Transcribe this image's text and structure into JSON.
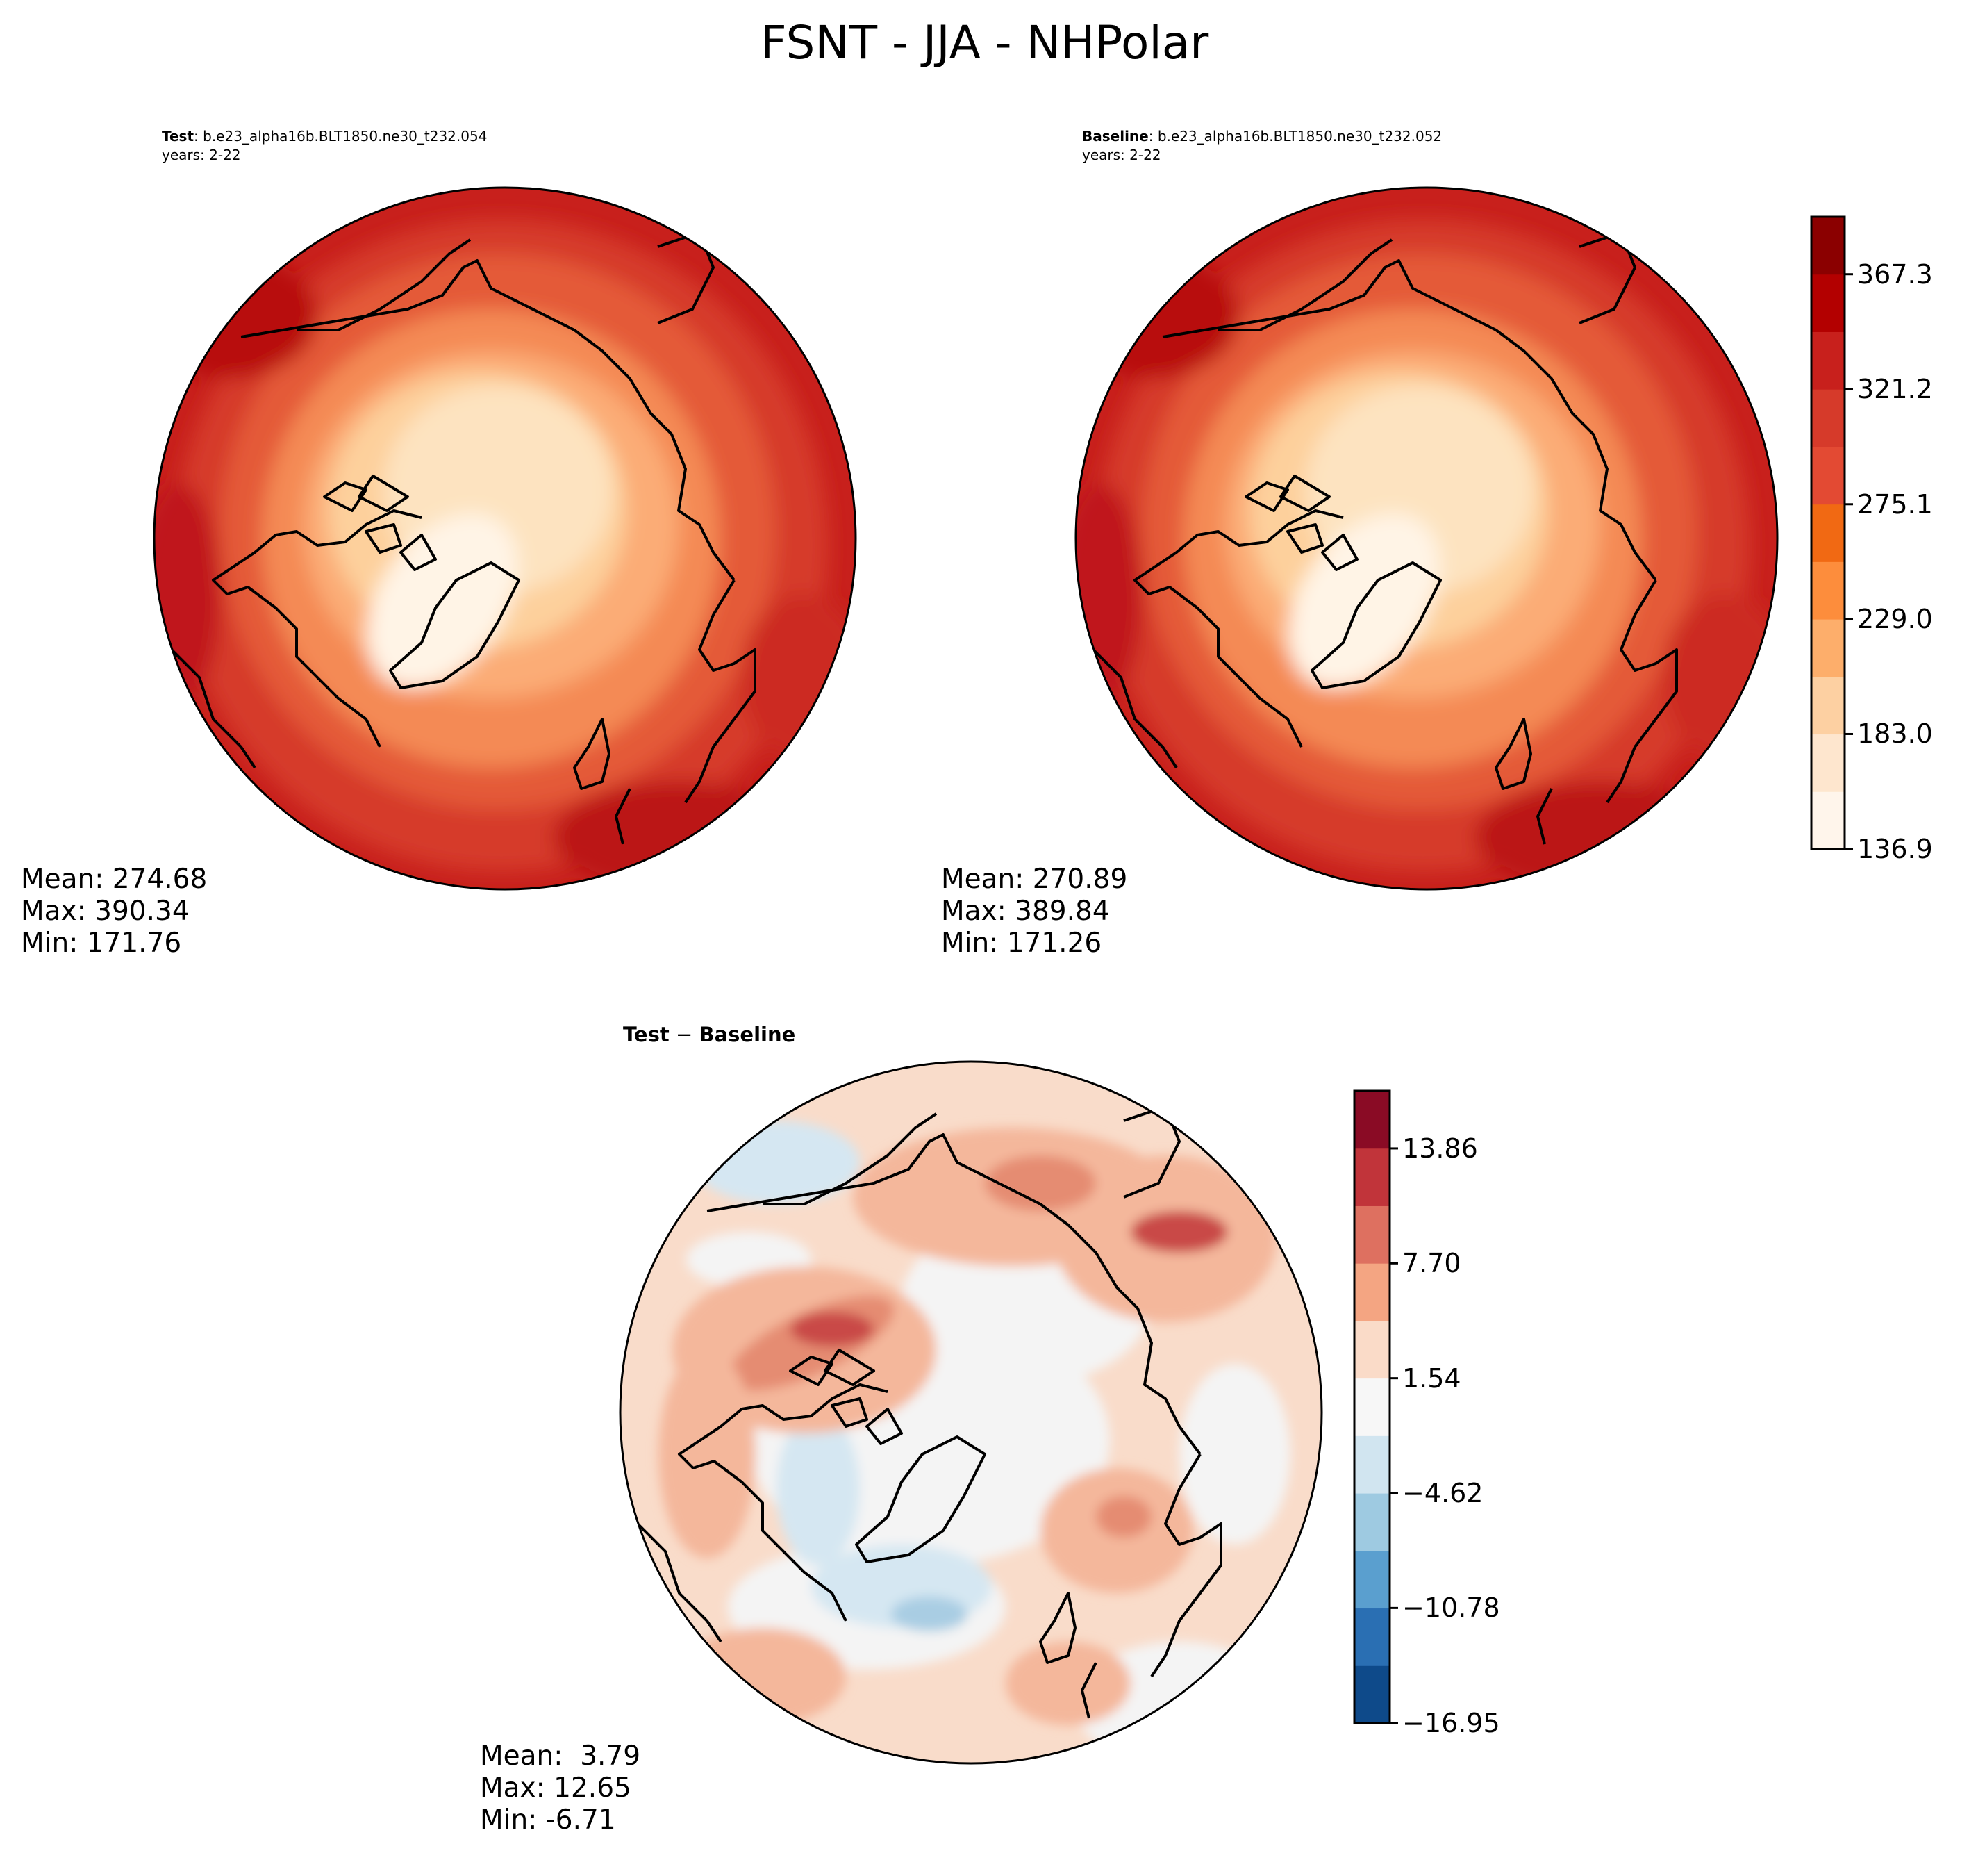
{
  "figure": {
    "title": "FSNT - JJA - NHPolar"
  },
  "panels": {
    "test": {
      "label_bold": "Test",
      "label_sep": ": ",
      "case": "b.e23_alpha16b.BLT1850.ne30_t232.054",
      "years": "years: 2-22",
      "mean": "Mean: 274.68",
      "max": "Max: 390.34",
      "min": "Min: 171.76"
    },
    "baseline": {
      "label_bold": "Baseline",
      "label_sep": ": ",
      "case": "b.e23_alpha16b.BLT1850.ne30_t232.052",
      "years": "years: 2-22",
      "mean": "Mean: 270.89",
      "max": "Max: 389.84",
      "min": "Min: 171.26"
    },
    "diff": {
      "title_left": "Test",
      "title_sep": " − ",
      "title_right": "Baseline",
      "mean": "Mean:  3.79",
      "max": "Max: 12.65",
      "min": "Min: -6.71"
    }
  },
  "chart_data": [
    {
      "type": "polar-contour-map",
      "title": "Test",
      "projection": "North Polar Stereographic",
      "variable": "FSNT",
      "season": "JJA",
      "stats": {
        "mean": 274.68,
        "max": 390.34,
        "min": 171.76
      }
    },
    {
      "type": "polar-contour-map",
      "title": "Baseline",
      "projection": "North Polar Stereographic",
      "variable": "FSNT",
      "season": "JJA",
      "stats": {
        "mean": 270.89,
        "max": 389.84,
        "min": 171.26
      }
    },
    {
      "type": "polar-contour-map",
      "title": "Test − Baseline",
      "projection": "North Polar Stereographic",
      "variable": "FSNT",
      "season": "JJA",
      "stats": {
        "mean": 3.79,
        "max": 12.65,
        "min": -6.71
      }
    }
  ],
  "colorbars": {
    "main": {
      "range": [
        136.9,
        390.34
      ],
      "ticks": [
        136.9,
        183.0,
        229.0,
        275.1,
        321.2,
        367.3
      ],
      "tick_labels": [
        "136.9",
        "183.0",
        "229.0",
        "275.1",
        "321.2",
        "367.3"
      ],
      "colors": [
        "#fff5eb",
        "#fee6ce",
        "#fdd0a2",
        "#fdae6b",
        "#fd8d3c",
        "#f16913",
        "#e34a33",
        "#d63a2a",
        "#c8201c",
        "#b30000",
        "#8b0000"
      ],
      "colors_note": "OrRd-like sequential bands"
    },
    "diff": {
      "range": [
        -16.95,
        16.95
      ],
      "ticks": [
        -16.95,
        -10.78,
        -4.62,
        1.54,
        7.7,
        13.86
      ],
      "tick_labels": [
        "−16.95",
        "−10.78",
        "−4.62",
        "1.54",
        "7.70",
        "13.86"
      ],
      "colors": [
        "#0e4a8a",
        "#2a6fb3",
        "#5a9fcf",
        "#9ecae1",
        "#d1e5f0",
        "#f7f7f7",
        "#fadbc8",
        "#f4a582",
        "#de7060",
        "#c1343a",
        "#8a0b25"
      ]
    }
  },
  "colors": {
    "map_colors": [
      "#fde9cf",
      "#fcd6a9",
      "#fbb67f",
      "#f99659",
      "#f0743f",
      "#e05a35",
      "#d0402b",
      "#c02a20"
    ],
    "diff_map_colors": [
      "#d5e7f2",
      "#a9cde3",
      "#f9dcca",
      "#f4b79b",
      "#e58c72",
      "#c94a47"
    ],
    "coastline": "#000000"
  }
}
